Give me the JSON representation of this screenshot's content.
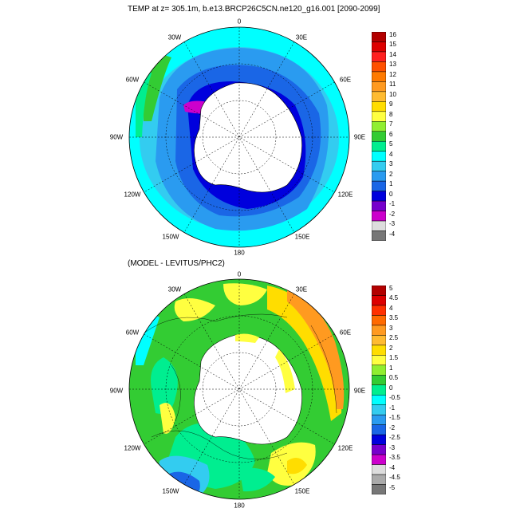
{
  "panels": [
    {
      "title": "TEMP at z= 305.1m, b.e13.BRCP26C5CN.ne120_g16.001 [2090-2099]",
      "lon_labels": [
        "0",
        "30E",
        "60E",
        "90E",
        "120E",
        "150E",
        "180",
        "150W",
        "120W",
        "90W",
        "60W",
        "30W"
      ],
      "colorbar": {
        "labels": [
          "16",
          "15",
          "14",
          "13",
          "12",
          "11",
          "10",
          "9",
          "8",
          "7",
          "6",
          "5",
          "4",
          "3",
          "2",
          "1",
          "0",
          "-1",
          "-2",
          "-3",
          "-4"
        ],
        "colors": [
          "#b30000",
          "#dd0000",
          "#ff2020",
          "#ff5000",
          "#ff7a00",
          "#ff9a20",
          "#ffbb30",
          "#ffdd00",
          "#ffff40",
          "#90ee30",
          "#33cc33",
          "#00ee90",
          "#00ffff",
          "#33ccf0",
          "#2a9bf0",
          "#1a66e6",
          "#0000dd",
          "#7700cc",
          "#cc00cc",
          "#dddddd",
          "#777777"
        ]
      }
    },
    {
      "title": "(MODEL - LEVITUS/PHC2)",
      "lon_labels": [
        "0",
        "30E",
        "60E",
        "90E",
        "120E",
        "150E",
        "180",
        "150W",
        "120W",
        "90W",
        "60W",
        "30W"
      ],
      "colorbar": {
        "labels": [
          "5",
          "4.5",
          "4",
          "3.5",
          "3",
          "2.5",
          "2",
          "1.5",
          "1",
          "0.5",
          "0",
          "-0.5",
          "-1",
          "-1.5",
          "-2",
          "-2.5",
          "-3",
          "-3.5",
          "-4",
          "-4.5",
          "-5"
        ],
        "colors": [
          "#b30000",
          "#dd0000",
          "#ff3000",
          "#ff6a00",
          "#ff9a20",
          "#ffbb30",
          "#ffdd00",
          "#ffff40",
          "#90ee30",
          "#33cc33",
          "#00ee90",
          "#00ffff",
          "#33ccf0",
          "#2a9bf0",
          "#1a66e6",
          "#0000dd",
          "#7700cc",
          "#cc00cc",
          "#dddddd",
          "#aaaaaa",
          "#777777"
        ]
      }
    }
  ]
}
